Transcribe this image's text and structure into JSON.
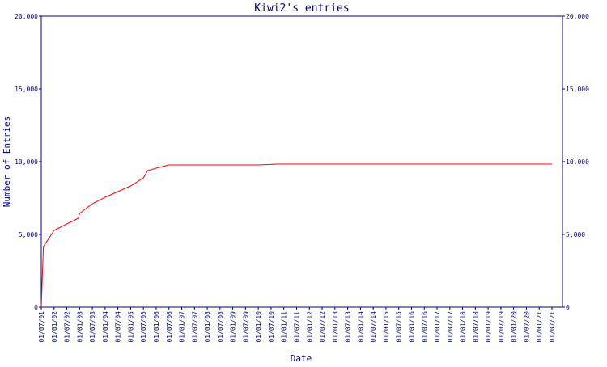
{
  "chart_data": {
    "type": "line",
    "title": "Kiwi2's entries",
    "xlabel": "Date",
    "ylabel": "Number of Entries",
    "xticks": [
      "01/07/01",
      "01/01/02",
      "01/07/02",
      "01/01/03",
      "01/07/03",
      "01/01/04",
      "01/07/04",
      "01/01/05",
      "01/07/05",
      "01/01/06",
      "01/07/06",
      "01/01/07",
      "01/07/07",
      "01/01/08",
      "01/07/08",
      "01/01/09",
      "01/07/09",
      "01/01/10",
      "01/07/10",
      "01/01/11",
      "01/07/11",
      "01/01/12",
      "01/07/12",
      "01/01/13",
      "01/07/13",
      "01/01/14",
      "01/07/14",
      "01/01/15",
      "01/07/15",
      "01/01/16",
      "01/07/16",
      "01/01/17",
      "01/07/17",
      "01/01/18",
      "01/07/18",
      "01/01/19",
      "01/07/19",
      "01/01/20",
      "01/07/20",
      "01/01/21",
      "01/07/21"
    ],
    "xlim": [
      "01/07/01",
      "01/07/21"
    ],
    "ylim": [
      0,
      20000
    ],
    "yticks": [
      0,
      {
        "value": 5000,
        "label": "5,000"
      },
      {
        "value": 10000,
        "label": "10,000"
      },
      {
        "value": 15000,
        "label": "15,000"
      },
      {
        "value": 20000,
        "label": "20,000"
      }
    ],
    "y2lim": [
      0,
      20000
    ],
    "y2ticks": [
      0,
      {
        "value": 5000,
        "label": "5,000"
      },
      {
        "value": 10000,
        "label": "10,000"
      },
      {
        "value": 15000,
        "label": "15,000"
      },
      {
        "value": 20000,
        "label": "20,000"
      }
    ],
    "series": [
      {
        "color": "#ff0000",
        "x": [
          "01/07/01",
          "01/08/01",
          "01/01/02",
          "01/07/02",
          "15/12/02",
          "01/01/03",
          "01/07/03",
          "01/01/04",
          "01/07/04",
          "01/01/05",
          "01/07/05",
          "01/09/05",
          "01/01/06",
          "01/07/06",
          "01/01/10",
          "01/10/10",
          "01/07/21"
        ],
        "values": [
          0,
          4167,
          5278,
          5722,
          6111,
          6444,
          7111,
          7556,
          7944,
          8333,
          8889,
          9389,
          9556,
          9778,
          9778,
          9833,
          9833
        ]
      }
    ]
  }
}
